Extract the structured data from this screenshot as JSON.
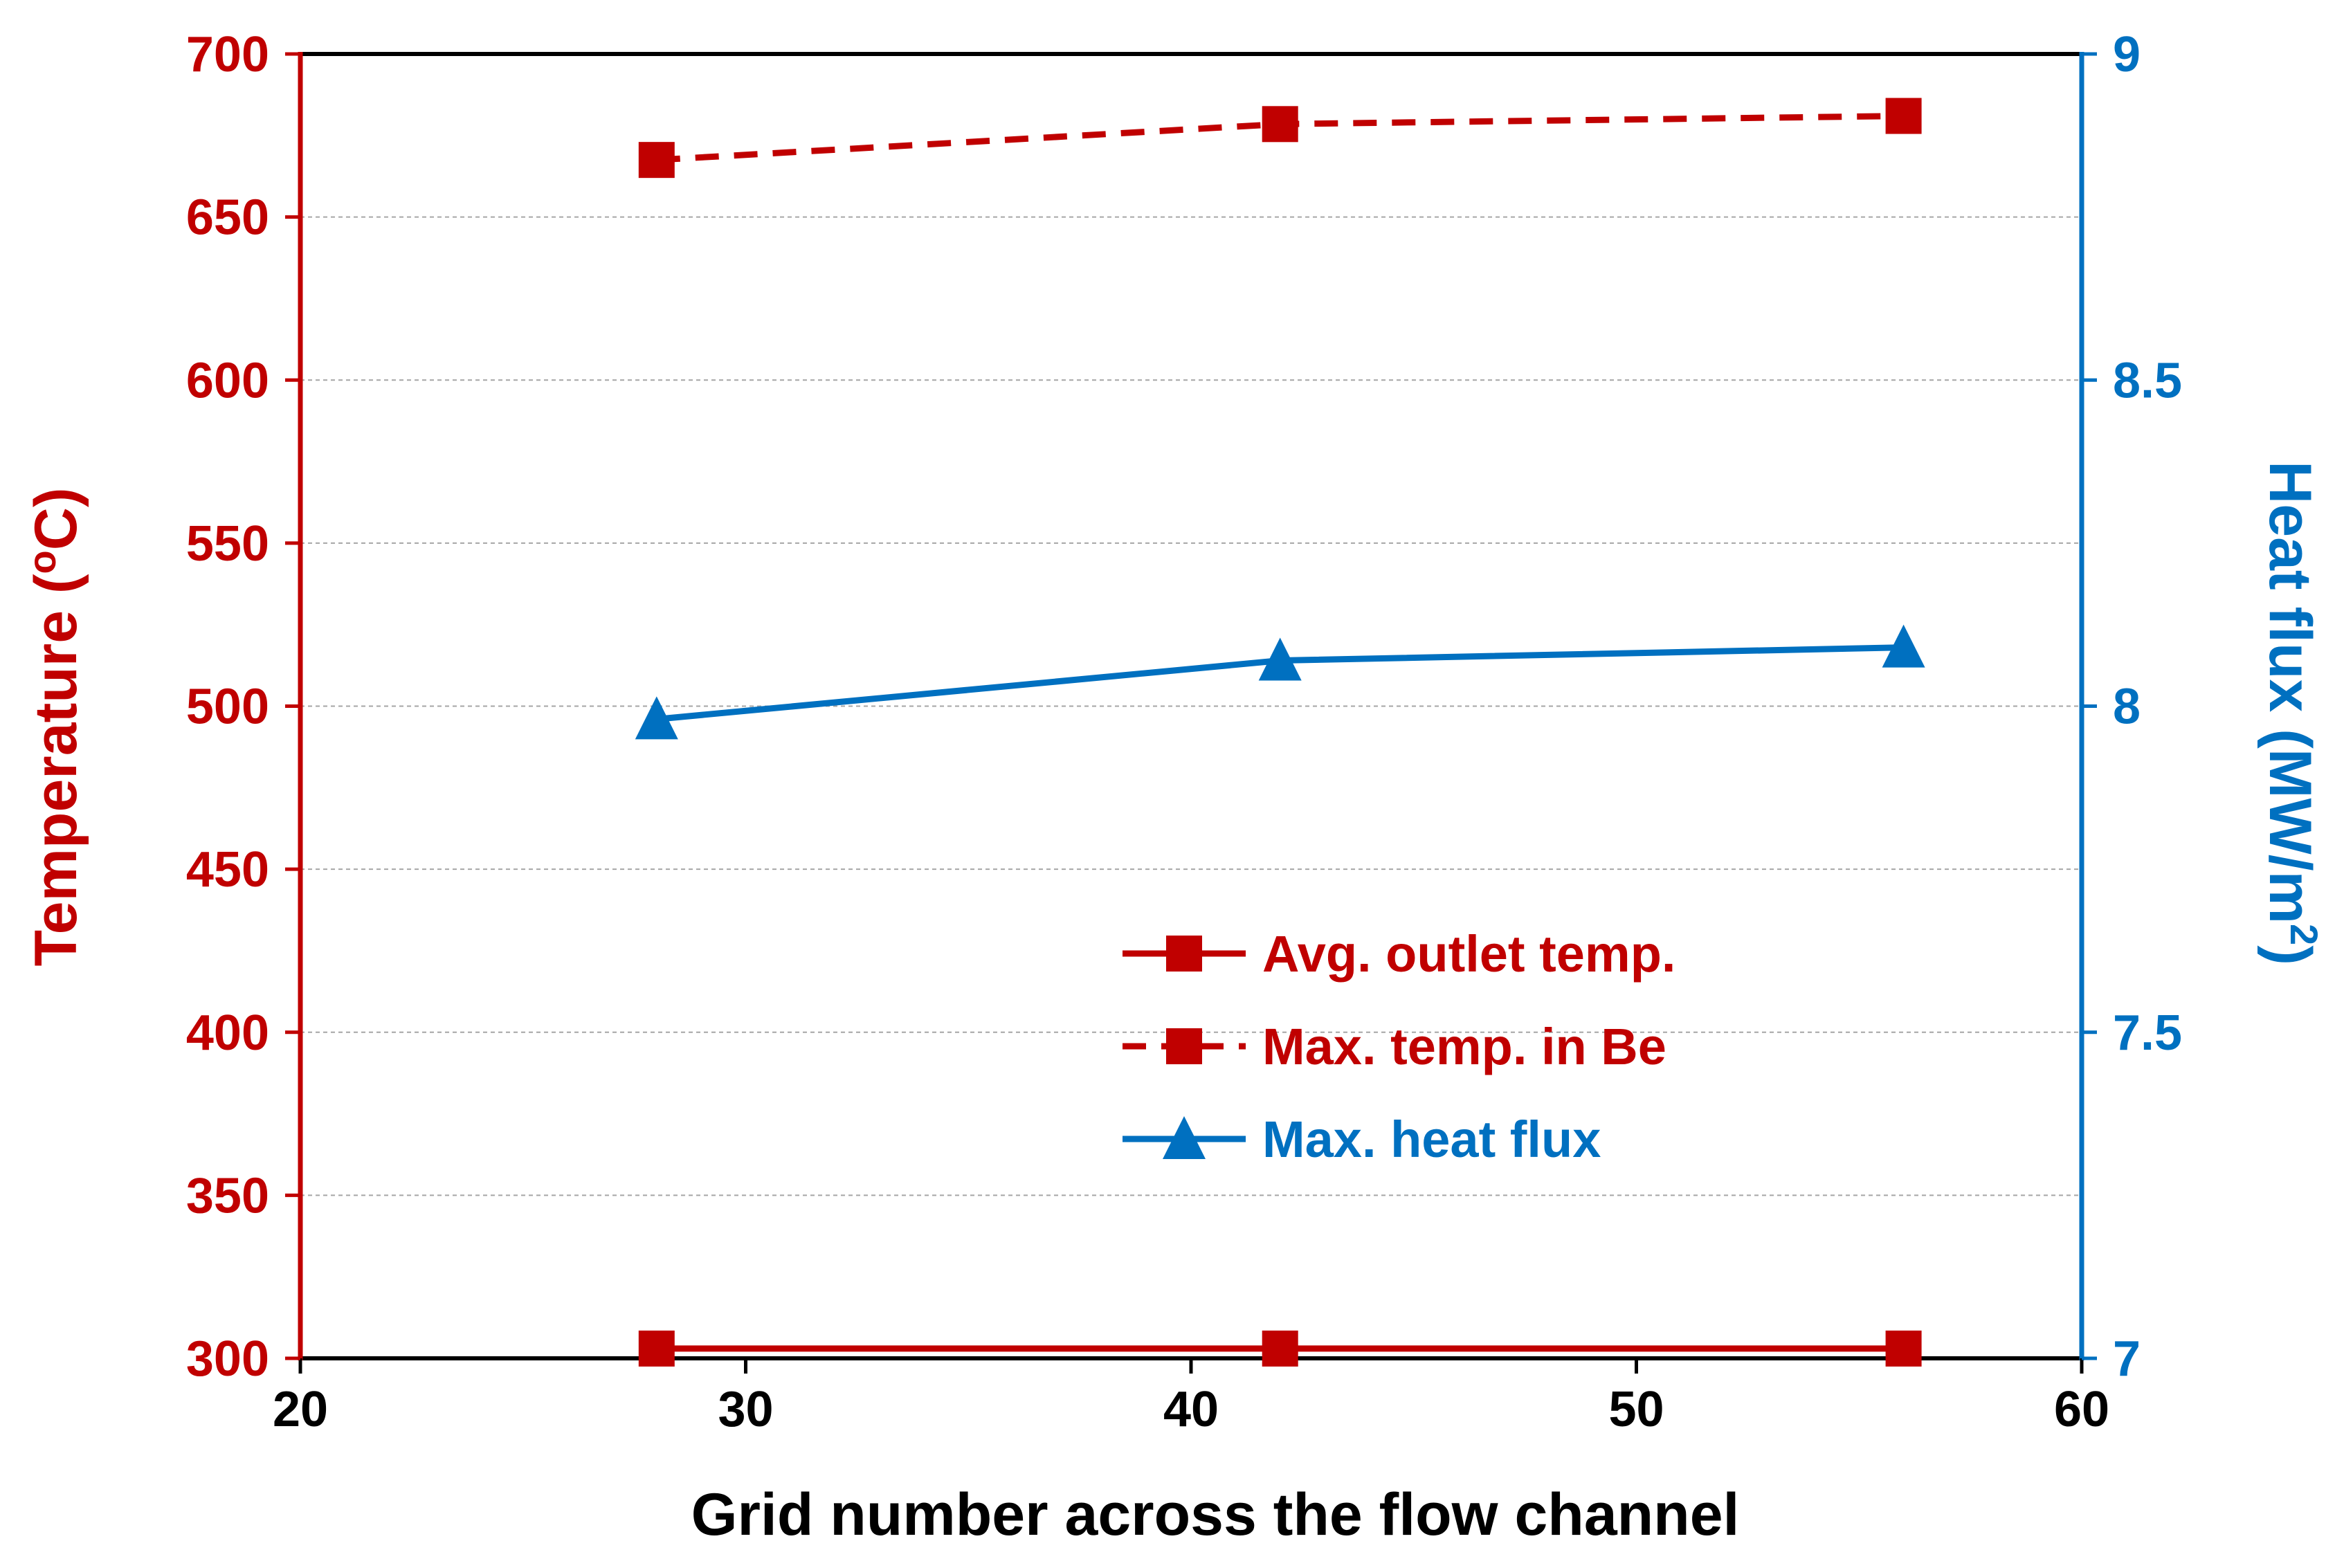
{
  "chart_data": {
    "type": "line",
    "xlabel": "Grid number across the flow channel",
    "ylabel_left": "Temperature (",
    "ylabel_left_sup": "o",
    "ylabel_left_tail": "C)",
    "ylabel_right": "Heat flux (MW/m",
    "ylabel_right_sup": "2",
    "ylabel_right_tail": ")",
    "xlim": [
      20,
      60
    ],
    "x_ticks": [
      "20",
      "30",
      "40",
      "50",
      "60"
    ],
    "ylim_left": [
      300,
      700
    ],
    "y_left_ticks": [
      "300",
      "350",
      "400",
      "450",
      "500",
      "550",
      "600",
      "650",
      "700"
    ],
    "ylim_right": [
      7,
      9
    ],
    "y_right_ticks": [
      "7",
      "7.5",
      "8",
      "8.5",
      "9"
    ],
    "grid": "horizontal, dashed",
    "legend_position": "center-right",
    "series": [
      {
        "name": "Avg. outlet temp.",
        "axis": "left",
        "x": [
          28,
          42,
          56
        ],
        "values": [
          303,
          303,
          303
        ],
        "marker": "square",
        "line": "solid",
        "color": "#C00000"
      },
      {
        "name": "Max. temp. in Be",
        "axis": "left",
        "x": [
          28,
          42,
          56
        ],
        "values": [
          667.5,
          678.5,
          681
        ],
        "marker": "square",
        "line": "dashed",
        "color": "#C00000"
      },
      {
        "name": "Max. heat flux",
        "axis": "right",
        "x": [
          28,
          42,
          56
        ],
        "values": [
          7.98,
          8.07,
          8.09
        ],
        "marker": "triangle",
        "line": "solid",
        "color": "#0070C0"
      }
    ]
  }
}
